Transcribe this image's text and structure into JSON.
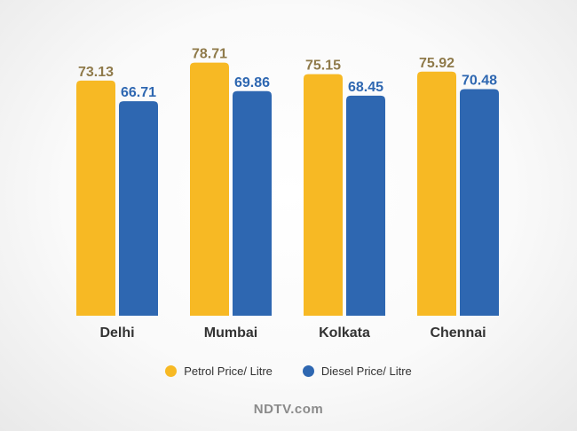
{
  "chart_data": {
    "type": "bar",
    "categories": [
      "Delhi",
      "Mumbai",
      "Kolkata",
      "Chennai"
    ],
    "series": [
      {
        "name": "Petrol Price/ Litre",
        "values": [
          73.13,
          78.71,
          75.15,
          75.92
        ],
        "color": "#f7b924",
        "label_color": "#8f7a4a"
      },
      {
        "name": "Diesel Price/ Litre",
        "values": [
          66.71,
          69.86,
          68.45,
          70.48
        ],
        "color": "#2e67b1",
        "label_color": "#2e67b1"
      }
    ],
    "ylim": [
      0,
      80
    ],
    "grid": false,
    "legend_position": "bottom"
  },
  "branding": {
    "text": "NDTV.com"
  }
}
